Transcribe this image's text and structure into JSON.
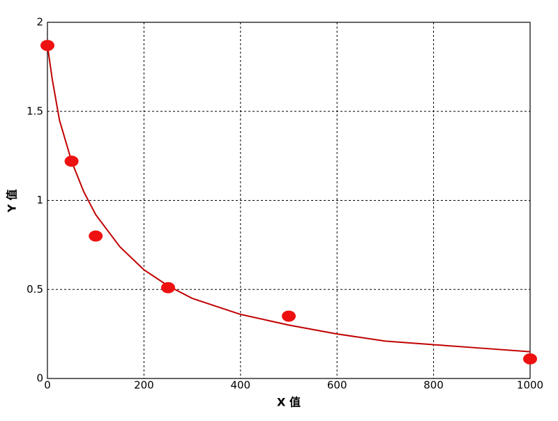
{
  "chart_data": {
    "type": "scatter",
    "xlabel": "X 值",
    "ylabel": "Y 值",
    "x": [
      0,
      50,
      100,
      250,
      500,
      1000
    ],
    "values": [
      1.87,
      1.22,
      0.8,
      0.51,
      0.35,
      0.11
    ],
    "color": "#ee1111",
    "curve": {
      "color": "#c00000",
      "x": [
        0,
        10,
        25,
        50,
        75,
        100,
        150,
        200,
        250,
        300,
        400,
        500,
        600,
        700,
        800,
        900,
        1000
      ],
      "values": [
        1.87,
        1.68,
        1.45,
        1.22,
        1.05,
        0.92,
        0.74,
        0.61,
        0.52,
        0.45,
        0.36,
        0.3,
        0.25,
        0.21,
        0.19,
        0.17,
        0.15
      ]
    },
    "xlim": [
      0,
      1000
    ],
    "xticks": [
      0,
      200,
      400,
      600,
      800,
      1000
    ],
    "ylim": [
      0,
      2
    ],
    "yticks": [
      0,
      0.5,
      1,
      1.5,
      2
    ],
    "grid": true
  }
}
